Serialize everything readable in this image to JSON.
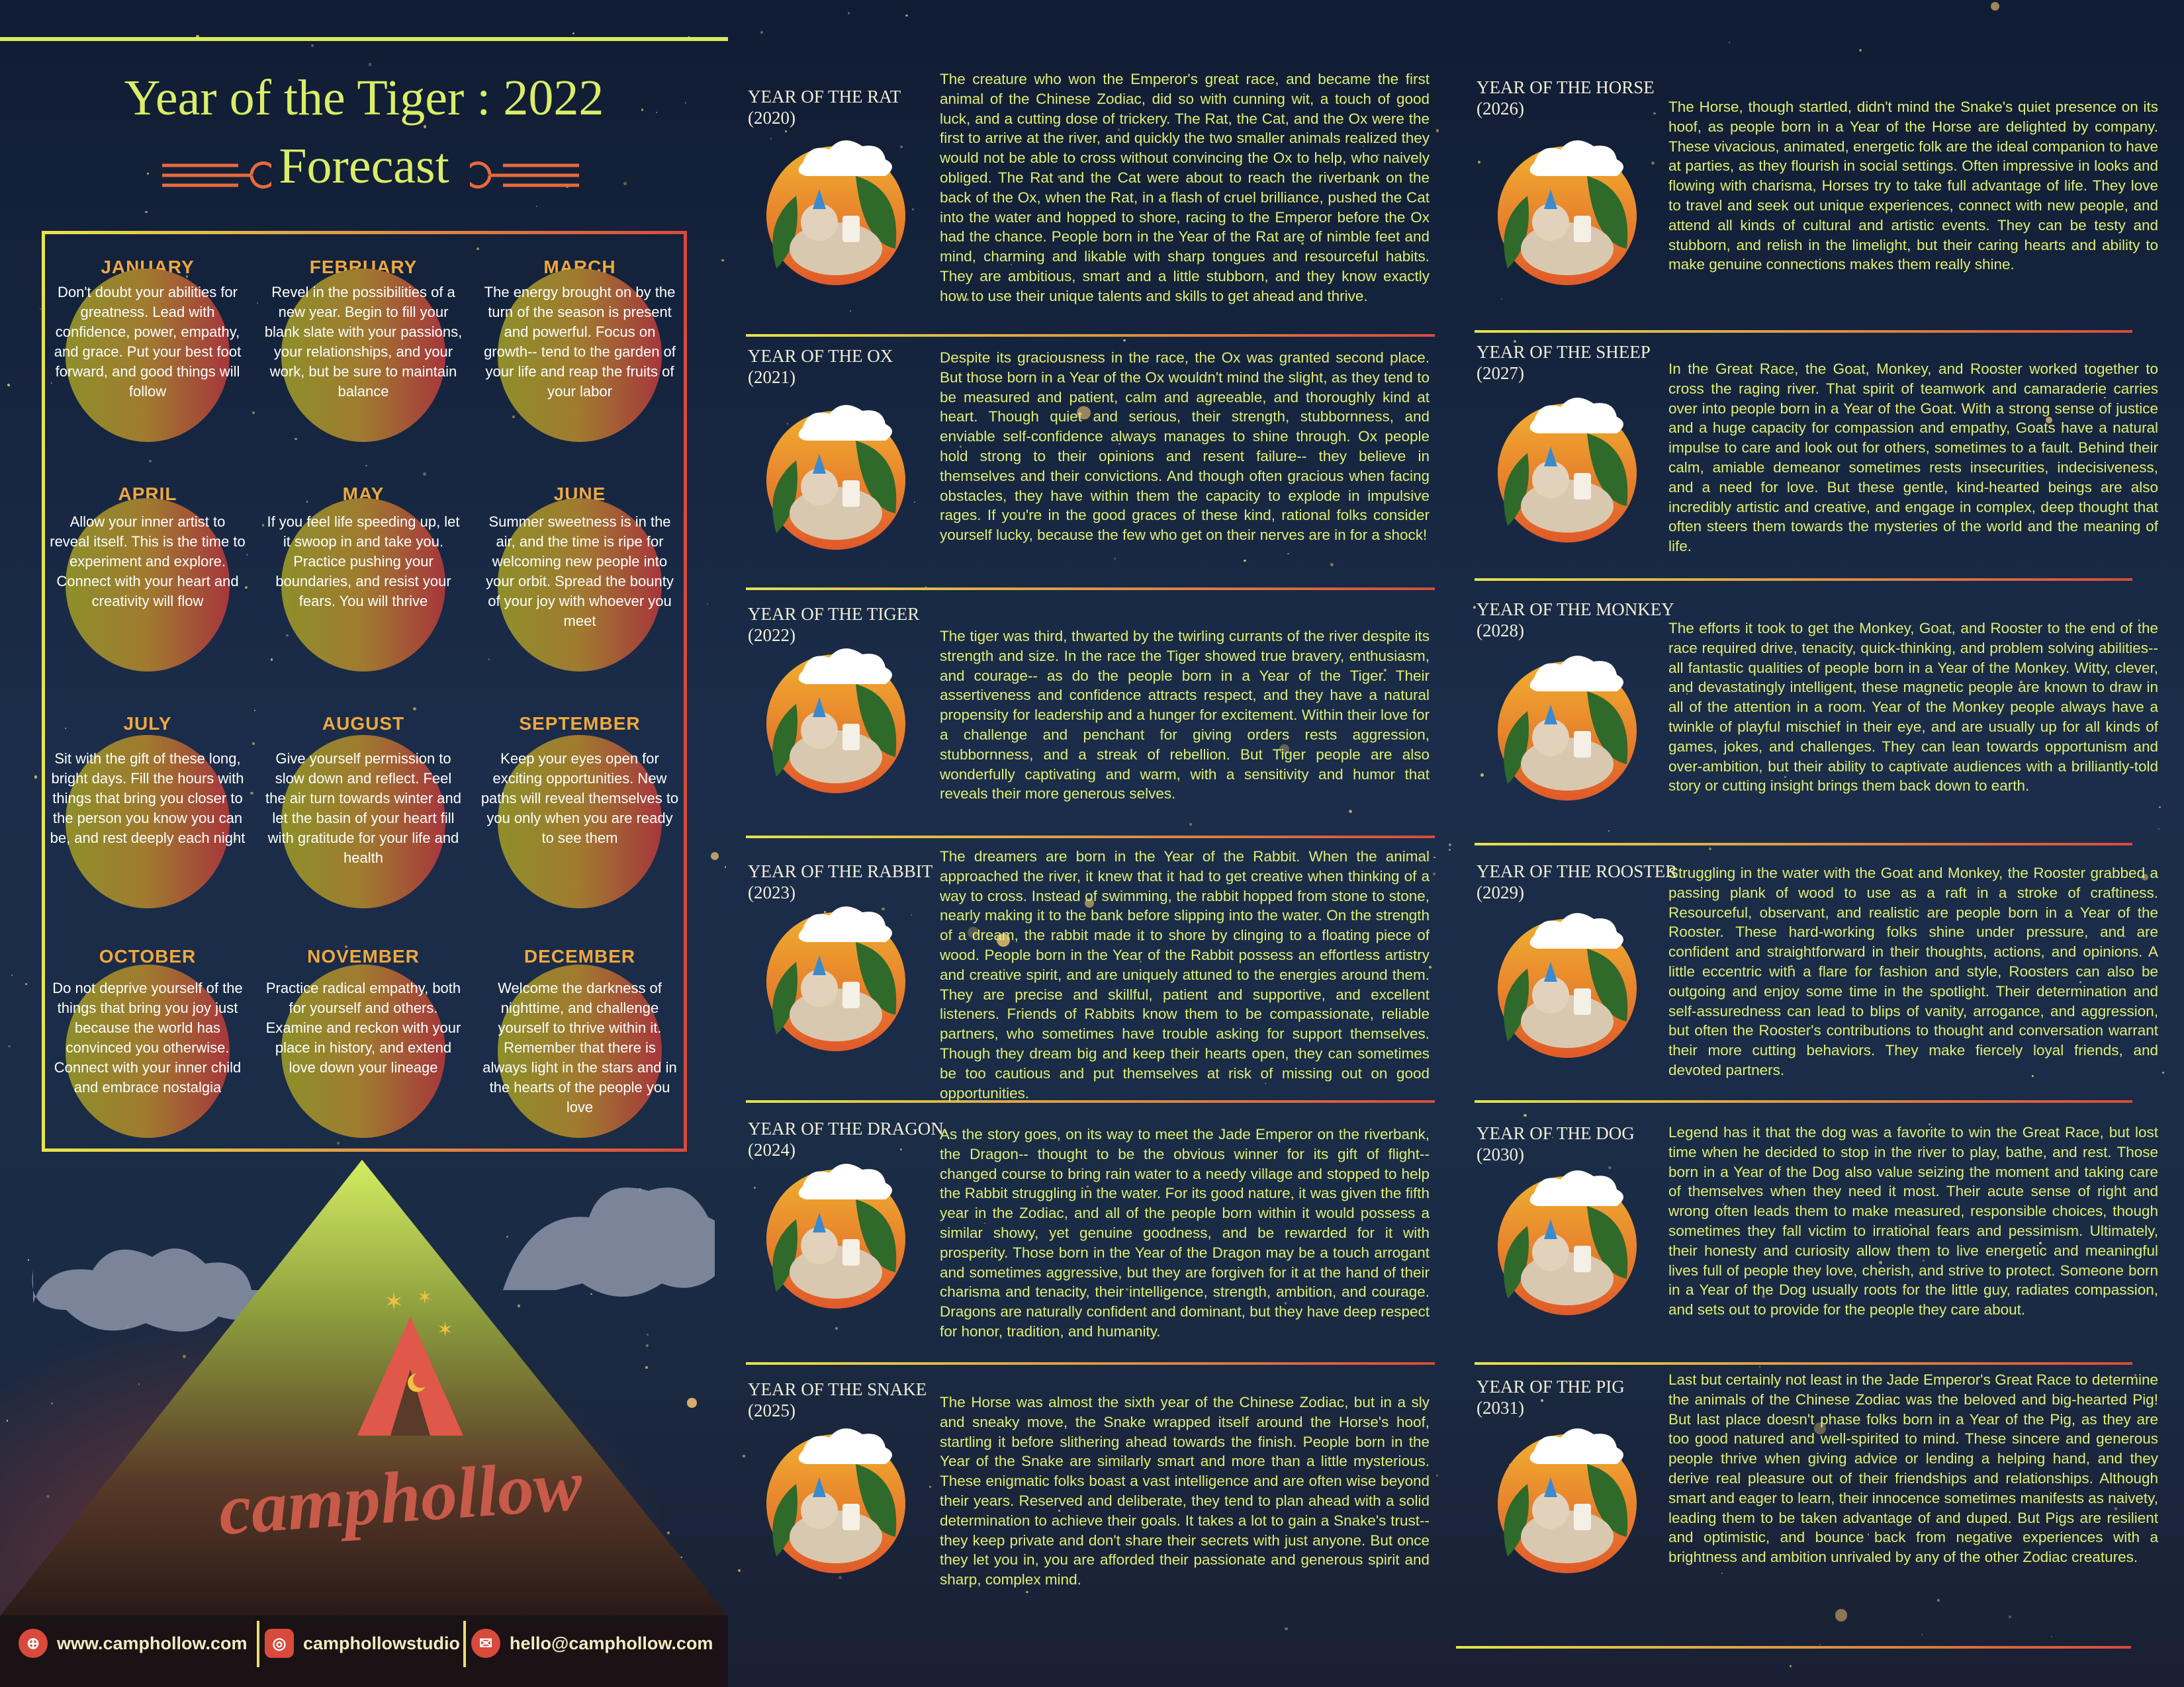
{
  "header": {
    "title": "Year of the Tiger : 2022",
    "subtitle": "Forecast"
  },
  "months": [
    {
      "name": "JANUARY",
      "text": "Don't doubt your abilities for greatness. Lead with confidence, power, empathy, and grace. Put your best foot forward, and good things will follow"
    },
    {
      "name": "FEBRUARY",
      "text": "Revel in the possibilities of a new year. Begin to fill your blank slate with your passions, your relationships, and your work, but be sure to maintain balance"
    },
    {
      "name": "MARCH",
      "text": "The energy brought on by the turn of the season is present and powerful. Focus on growth-- tend to the garden of your life and reap the fruits of your labor"
    },
    {
      "name": "APRIL",
      "text": "Allow your inner artist to reveal itself. This is the time to experiment and explore. Connect with your heart and creativity will flow"
    },
    {
      "name": "MAY",
      "text": "If you feel life speeding up, let it swoop in and take you. Practice pushing your boundaries, and resist your fears. You will thrive"
    },
    {
      "name": "JUNE",
      "text": "Summer sweetness is in the air, and the time is ripe for welcoming new people into your orbit. Spread the bounty of your joy with whoever you meet"
    },
    {
      "name": "JULY",
      "text": "Sit with the gift of these long, bright days. Fill the hours with things that bring you closer to the person you know you can be, and rest deeply each night"
    },
    {
      "name": "AUGUST",
      "text": "Give yourself permission to slow down and reflect. Feel the air turn towards winter and let the basin of your heart fill with gratitude for your life and health"
    },
    {
      "name": "SEPTEMBER",
      "text": "Keep your eyes open for exciting opportunities. New paths will reveal themselves to you only when you are ready to see them"
    },
    {
      "name": "OCTOBER",
      "text": "Do not deprive yourself of the things that bring you joy just because the world has convinced you otherwise. Connect with your inner child and embrace nostalgia"
    },
    {
      "name": "NOVEMBER",
      "text": "Practice radical empathy, both for yourself and others. Examine and reckon with your place in history, and extend love down your lineage"
    },
    {
      "name": "DECEMBER",
      "text": "Welcome the darkness of nighttime, and challenge yourself to thrive within it. Remember that there is always light in the stars and in the hearts of the people you love"
    }
  ],
  "zodiac": [
    {
      "title": "YEAR OF THE RAT",
      "year": "(2020)",
      "animal": "rat",
      "text": "The creature who won the Emperor's great race, and became the first animal of the Chinese Zodiac, did so with cunning wit, a touch of good luck, and a cutting dose of trickery. The Rat, the Cat, and the Ox were the first to arrive at the river, and quickly the two smaller animals realized they would not be able to cross without convincing the Ox to help, who naively obliged. The Rat and the Cat were about to reach the riverbank on the back of the Ox, when the Rat, in a flash of cruel brilliance, pushed the Cat into the water and hopped to shore, racing to the Emperor before the Ox had the chance. People born in the Year of the Rat are of nimble feet and mind, charming and likable with sharp tongues and resourceful habits. They are ambitious, smart and a little stubborn, and they know exactly how to use their unique talents and skills to get ahead and thrive."
    },
    {
      "title": "YEAR OF THE OX",
      "year": "(2021)",
      "animal": "ox",
      "text": "Despite its graciousness in the race, the Ox was granted second place. But those born in a Year of the Ox wouldn't mind the slight, as they tend to be measured and patient, calm and agreeable, and thoroughly kind at heart. Though quiet and serious, their strength, stubbornness, and enviable self-confidence always manages to shine through. Ox people hold strong to their opinions and resent failure-- they believe in themselves and their convictions. And though often gracious when facing obstacles, they have within them the capacity to explode in impulsive rages. If you're in the good graces of these kind, rational folks consider yourself lucky, because the few who get on their nerves are in for a shock!"
    },
    {
      "title": "YEAR OF THE TIGER",
      "year": "(2022)",
      "animal": "tiger",
      "text": "The tiger was third, thwarted by the twirling currants of the river despite its strength and size. In the race the Tiger showed true bravery, enthusiasm, and courage-- as do the people born in a Year of the Tiger. Their assertiveness and confidence attracts respect, and they have a natural propensity for leadership and a hunger for excitement. Within their love for a challenge and penchant for giving orders rests aggression, stubbornness, and a streak of rebellion. But Tiger people are also wonderfully captivating and warm, with a sensitivity and humor that reveals their more generous selves."
    },
    {
      "title": "YEAR OF THE RABBIT",
      "year": "(2023)",
      "animal": "rabbit",
      "text": "The dreamers are born in the Year of the Rabbit. When the animal approached the river, it knew that it had to get creative when thinking of a way to cross. Instead of swimming, the rabbit hopped from stone to stone, nearly making it to the bank before slipping into the water. On the strength of a dream, the rabbit made it to shore by clinging to a floating piece of wood. People born in the Year of the Rabbit possess an effortless artistry and creative spirit, and are uniquely attuned to the energies around them. They are precise and skillful, patient and supportive, and excellent listeners. Friends of Rabbits know them to be compassionate, reliable partners, who sometimes have trouble asking for support themselves. Though they dream big and keep their hearts open, they can sometimes be too cautious and put themselves at risk of missing out on good opportunities."
    },
    {
      "title": "YEAR OF THE DRAGON",
      "year": "(2024)",
      "animal": "dragon",
      "text": "As the story goes, on its way to meet the Jade Emperor on the riverbank, the Dragon-- thought to be the obvious winner for its gift of flight-- changed course to bring rain water to a needy village and stopped to help the Rabbit struggling in the water. For its good nature, it was given the fifth year in the Zodiac, and all of the people born within it would possess a similar showy, yet genuine goodness, and be rewarded for it with prosperity. Those born in the Year of the Dragon may be a touch arrogant and sometimes aggressive, but they are forgiven for it at the hand of their charisma and tenacity, their intelligence, strength, ambition, and courage. Dragons are naturally confident and dominant, but they have deep respect for honor, tradition, and humanity."
    },
    {
      "title": "YEAR OF THE SNAKE",
      "year": "(2025)",
      "animal": "snake",
      "text": "The Horse was almost the sixth year of the Chinese Zodiac, but in a sly and sneaky move, the Snake wrapped itself around the Horse's hoof, startling it before slithering ahead towards the finish. People born in the Year of the Snake are similarly smart and more than a little mysterious. These enigmatic folks boast a vast intelligence and are often wise beyond their years. Reserved and deliberate, they tend to plan ahead with a solid determination to achieve their goals. It takes a lot to gain a Snake's trust-- they keep private and don't share their secrets with just anyone. But once they let you in, you are afforded their passionate and generous spirit and sharp, complex mind."
    },
    {
      "title": "YEAR OF THE HORSE",
      "year": "(2026)",
      "animal": "horse",
      "text": "The Horse, though startled, didn't mind the Snake's quiet presence on its hoof, as people born in a Year of the Horse are delighted by company. These vivacious, animated, energetic folk are the ideal companion to have at parties, as they flourish in social settings. Often impressive in looks and flowing with charisma, Horses try to take full advantage of life. They love to travel and seek out unique experiences, connect with new people, and attend all kinds of cultural and artistic events. They can be testy and stubborn, and relish in the limelight, but their caring hearts and ability to make genuine connections makes them really shine."
    },
    {
      "title": "YEAR OF THE SHEEP",
      "year": "(2027)",
      "animal": "sheep",
      "text": "In the Great Race, the Goat, Monkey, and Rooster worked together to cross the raging river. That spirit of teamwork and camaraderie carries over into people born in a Year of the Goat. With a strong sense of justice and a huge capacity for compassion and empathy, Goats have a natural impulse to care and look out for others, sometimes to a fault. Behind their calm, amiable demeanor sometimes rests insecurities, indecisiveness, and a need for love. But these gentle, kind-hearted beings are also incredibly artistic and creative, and engage in complex, deep thought that often steers them towards the mysteries of the world and the meaning of life."
    },
    {
      "title": "YEAR OF THE MONKEY",
      "year": "(2028)",
      "animal": "monkey",
      "text": "The efforts it took to get the Monkey, Goat, and Rooster to the end of the race required drive, tenacity, quick-thinking, and problem solving abilities-- all fantastic qualities of people born in a Year of the Monkey. Witty, clever, and devastatingly intelligent, these magnetic people are known to draw in all of the attention in a room. Year of the Monkey people always have a twinkle of playful mischief in their eye, and are usually up for all kinds of games, jokes, and challenges. They can lean towards opportunism and over-ambition, but their ability to captivate audiences with a brilliantly-told story or cutting insight brings them back down to earth."
    },
    {
      "title": "YEAR OF THE ROOSTER",
      "year": "(2029)",
      "animal": "rooster",
      "text": "Struggling in the water with the Goat and Monkey, the Rooster grabbed a passing plank of wood to use as a raft in a stroke of craftiness. Resourceful, observant, and realistic are people born in a Year of the Rooster. These hard-working folks shine under pressure, and are confident and straightforward in their thoughts, actions, and opinions. A little eccentric with a flare for fashion and style, Roosters can also be outgoing and enjoy some time in the spotlight. Their determination and self-assuredness can lead to blips of vanity, arrogance, and aggression, but often the Rooster's contributions to thought and conversation warrant their more cutting behaviors. They make fiercely loyal friends, and devoted partners."
    },
    {
      "title": "YEAR OF THE DOG",
      "year": "(2030)",
      "animal": "dog",
      "text": "Legend has it that the dog was a favorite to win the Great Race, but lost time when he decided to stop in the river to play, bathe, and rest. Those born in a Year of the Dog also value seizing the moment and taking care of themselves when they need it most. Their acute sense of right and wrong often leads them to make measured, responsible choices, though sometimes they fall victim to irrational fears and pessimism. Ultimately, their honesty and curiosity allow them to live energetic and meaningful lives full of people they love, cherish, and strive to protect. Someone born in a Year of the Dog usually roots for the little guy, radiates compassion, and sets out to provide for the people they care about."
    },
    {
      "title": "YEAR OF THE PIG",
      "year": "(2031)",
      "animal": "pig",
      "text": "Last but certainly not least in the Jade Emperor's Great Race to determine the animals of the Chinese Zodiac was the beloved and big-hearted Pig! But last place doesn't phase folks born in a Year of the Pig, as they are too good natured and well-spirited to mind. These sincere and generous people thrive when giving advice or lending a helping hand, and they derive real pleasure out of their friendships and relationships. Although smart and eager to learn, their innocence sometimes manifests as naivety, leading them to be taken advantage of and duped. But Pigs are resilient and optimistic, and bounce back from negative experiences with a brightness and ambition unrivaled by any of the other Zodiac creatures."
    }
  ],
  "logo": {
    "text": "camphollow"
  },
  "footer": {
    "website": "www.camphollow.com",
    "instagram": "camphollowstudio",
    "email": "hello@camphollow.com",
    "icons": [
      "globe-icon",
      "instagram-icon",
      "mail-icon"
    ]
  },
  "colors": {
    "title": "#d9ee66",
    "body_text": "#dfee72",
    "month_label": "#f0a83c",
    "accent_red": "#d84a3c"
  }
}
